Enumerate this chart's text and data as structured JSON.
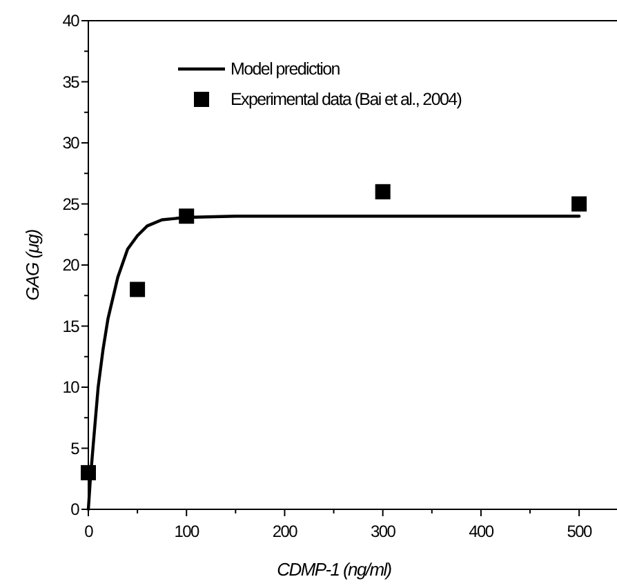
{
  "chart_data": {
    "type": "line",
    "xlabel": "CDMP-1 (ng/ml)",
    "ylabel": "GAG (μg)",
    "xlim": [
      0,
      540
    ],
    "xticks": [
      0,
      {
        "value": 50,
        "label": null
      },
      100,
      {
        "value": 150,
        "label": null
      },
      200,
      {
        "value": 250,
        "label": null
      },
      300,
      {
        "value": 350,
        "label": null
      },
      400,
      {
        "value": 450,
        "label": null
      },
      500
    ],
    "ylim": [
      0,
      40
    ],
    "yticks": [
      0,
      {
        "value": 2.5,
        "label": null
      },
      5,
      {
        "value": 7.5,
        "label": null
      },
      10,
      {
        "value": 12.5,
        "label": null
      },
      15,
      {
        "value": 17.5,
        "label": null
      },
      20,
      {
        "value": 22.5,
        "label": null
      },
      25,
      {
        "value": 27.5,
        "label": null
      },
      30,
      {
        "value": 32.5,
        "label": null
      },
      35,
      {
        "value": 37.5,
        "label": null
      },
      40
    ],
    "legend": "top left",
    "grid": false,
    "series": [
      {
        "name": "Model prediction",
        "type": "line",
        "color": "#000000",
        "marker": "none",
        "line_style": "solid",
        "x": [
          0,
          2,
          5,
          10,
          15,
          20,
          30,
          40,
          50,
          60,
          75,
          100,
          150,
          200,
          300,
          400,
          500
        ],
        "values": [
          0,
          2.4,
          5.3,
          10,
          13.1,
          15.6,
          19,
          21.3,
          22.4,
          23.2,
          23.7,
          23.9,
          24,
          24,
          24,
          24,
          24
        ]
      },
      {
        "name": "Experimental data (Bai et al., 2004)",
        "type": "scatter",
        "color": "#000000",
        "marker": "square",
        "x": [
          0,
          50,
          100,
          300,
          500
        ],
        "values": [
          3,
          18,
          24,
          26,
          25
        ]
      }
    ]
  }
}
